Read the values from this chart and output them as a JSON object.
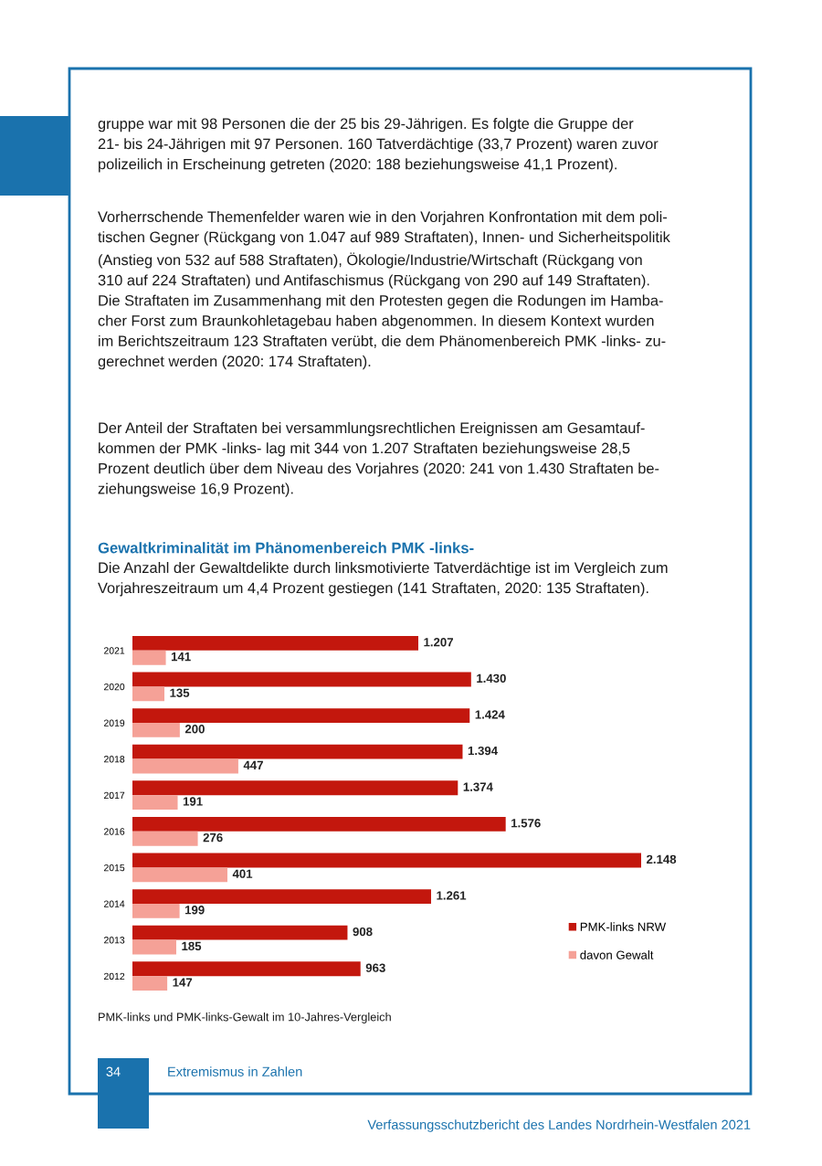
{
  "chart_data": {
    "type": "bar",
    "orientation": "horizontal",
    "title": "Gewaltkriminalität im Phänomenbereich PMK -links-",
    "subtitle": "Die Anzahl der Gewaltdelikte durch linksmotivierte Tatverdächtige ist im Vergleich zum\nVorjahreszeitraum um 4,4 Prozent gestiegen (141 Straftaten, 2020: 135 Straftaten).",
    "categories": [
      "2021",
      "2020",
      "2019",
      "2018",
      "2017",
      "2016",
      "2015",
      "2014",
      "2013",
      "2012"
    ],
    "series": [
      {
        "name": "PMK-links NRW",
        "color": "#c3170d",
        "values": [
          1207,
          1430,
          1424,
          1394,
          1374,
          1576,
          2148,
          1261,
          908,
          963
        ],
        "value_labels": [
          "1.207",
          "1.430",
          "1.424",
          "1.394",
          "1.374",
          "1.576",
          "2.148",
          "1.261",
          "908",
          "963"
        ]
      },
      {
        "name": "davon Gewalt",
        "color": "#f5a197",
        "values": [
          141,
          135,
          200,
          447,
          191,
          276,
          401,
          199,
          185,
          147
        ],
        "value_labels": [
          "141",
          "135",
          "200",
          "447",
          "191",
          "276",
          "401",
          "199",
          "185",
          "147"
        ]
      }
    ],
    "legend": "bottom right",
    "grid": false,
    "tick_labels": "y",
    "annotations": [
      "gruppe war mit 98 Personen die der 25 bis 29-Jährigen. Es folgte die Gruppe der\n21- bis 24-Jährigen mit 97 Personen. 160 Tatverdächtige (33,7 Prozent) waren zuvor\npolizeilich in Erscheinung getreten (2020: 188 beziehungsweise 41,1 Prozent).",
      "Vorherrschende Themenfelder waren wie in den Vorjahren Konfrontation mit dem poli-\ntischen Gegner (Rückgang von 1.047 auf 989 Straftaten), Innen- und Sicherheitspolitik\n(Anstieg von 532 auf 588 Straftaten), Ökologie/Industrie/Wirtschaft (Rückgang von\n310 auf 224 Straftaten) und Antifaschismus (Rückgang von 290 auf 149 Straftaten).\nDie Straftaten im Zusammenhang mit den Protesten gegen die Rodungen im Hamba-\ncher Forst zum Braunkohletagebau haben abgenommen. In diesem Kontext wurden\nim Berichtszeitraum 123 Straftaten verübt, die dem Phänomenbereich PMK -links- zu-\ngerechnet werden (2020: 174 Straftaten).",
      "Der Anteil der Straftaten bei versammlungsrechtlichen Ereignissen am Gesamtauf-\nkommen der PMK -links- lag mit 344 von 1.207 Straftaten beziehungsweise 28,5\nProzent deutlich über dem Niveau des Vorjahres (2020: 241 von 1.430 Straftaten be-\nziehungsweise 16,9 Prozent).",
      "PMK-links und PMK-links-Gewalt im 10-Jahres-Vergleich",
      "34",
      "Extremismus in Zahlen",
      "Verfassungsschutzbericht des Landes Nordrhein-Westfalen 2021"
    ]
  }
}
